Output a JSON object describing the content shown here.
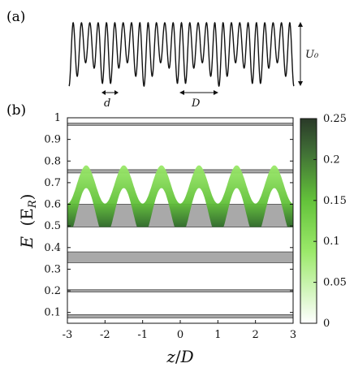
{
  "panel_a": {
    "label": "(a)",
    "amplitude_label": "U₀",
    "d_label": "d",
    "D_label": "D"
  },
  "panel_b": {
    "label": "(b)",
    "ylabel_main": "E",
    "ylabel_unit_open": "(E",
    "ylabel_unit_sub": "R",
    "ylabel_unit_close": ")",
    "xlabel_main": "z",
    "xlabel_div": "/",
    "xlabel_den": "D"
  },
  "chart_data": {
    "type": "heatmap",
    "x": [
      -3,
      -2,
      -1,
      0,
      1,
      2,
      3
    ],
    "xlim": [
      -3,
      3
    ],
    "ylim": [
      0.05,
      1.0
    ],
    "y_ticks": [
      0.1,
      0.2,
      0.3,
      0.4,
      0.5,
      0.6,
      0.7,
      0.8,
      0.9,
      1
    ],
    "x_ticks": [
      -3,
      -2,
      -1,
      0,
      1,
      2,
      3
    ],
    "bands": [
      {
        "low": 0.075,
        "high": 0.09
      },
      {
        "low": 0.195,
        "high": 0.205
      },
      {
        "low": 0.33,
        "high": 0.38
      },
      {
        "low": 0.495,
        "high": 0.6
      },
      {
        "low": 0.745,
        "high": 0.76
      },
      {
        "low": 0.965,
        "high": 0.975
      }
    ],
    "density_band": {
      "low": 0.495,
      "high": 0.6,
      "peak_period": 1,
      "peak_offset": 0.5
    },
    "colorbar": {
      "ticks": [
        0,
        0.05,
        0.1,
        0.15,
        0.2,
        0.25
      ],
      "range": [
        0,
        0.25
      ],
      "colors": [
        "#ffffff",
        "#7ee23a",
        "#2f4a28"
      ]
    }
  }
}
